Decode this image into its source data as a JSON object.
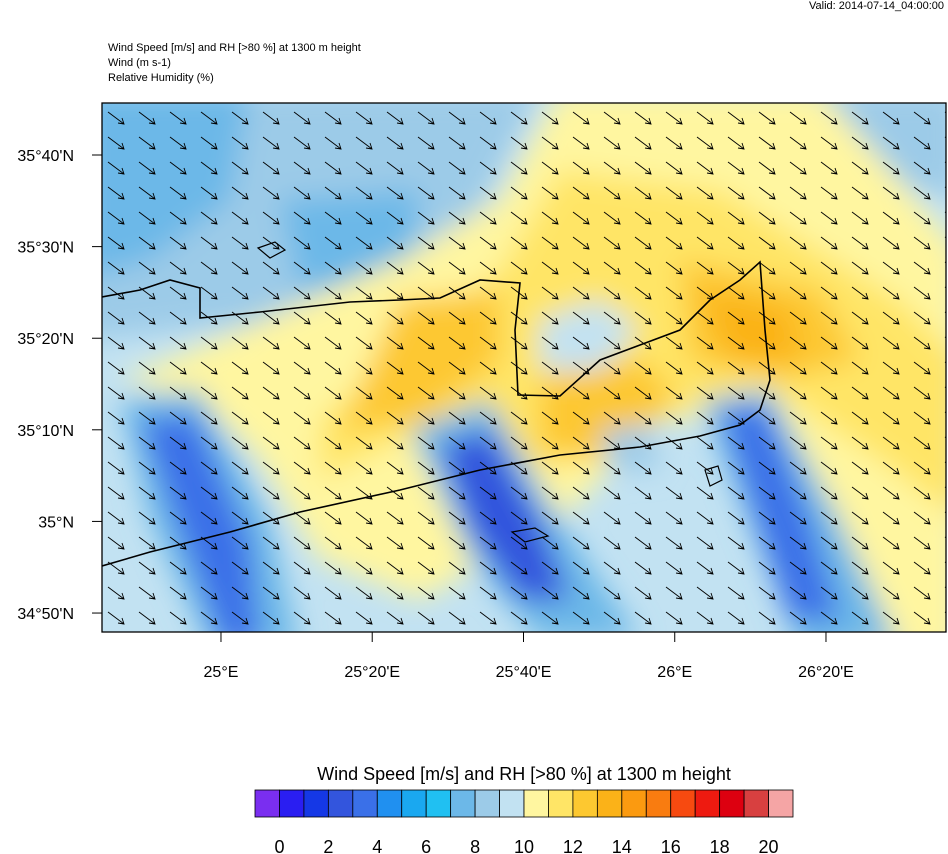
{
  "valid": "Valid: 2014-07-14_04:00:00",
  "header": [
    "Wind Speed [m/s] and RH [>80 %] at 1300 m height",
    "Wind   (m s-1)",
    "Relative Humidity   (%)"
  ],
  "map": {
    "latlim": [
      34.7988,
      35.7613
    ],
    "lonlim": [
      24.7378,
      26.5978
    ],
    "lat_ticks": [
      {
        "value": 35.6667,
        "label": "35°40'N"
      },
      {
        "value": 35.5,
        "label": "35°30'N"
      },
      {
        "value": 35.3333,
        "label": "35°20'N"
      },
      {
        "value": 35.1667,
        "label": "35°10'N"
      },
      {
        "value": 35,
        "label": "35°N"
      },
      {
        "value": 34.8333,
        "label": "34°50'N"
      }
    ],
    "lon_ticks": [
      {
        "value": 25,
        "label": "25°E"
      },
      {
        "value": 25.3333,
        "label": "25°20'E"
      },
      {
        "value": 25.6667,
        "label": "25°40'E"
      },
      {
        "value": 26,
        "label": "26°E"
      },
      {
        "value": 26.3333,
        "label": "26°20'E"
      }
    ]
  },
  "colorbar": {
    "title": "Wind Speed [m/s] and RH [>80 %] at 1300 m height",
    "lim": [
      -1,
      21
    ],
    "colors": [
      "#7a2ef0",
      "#2a1ef2",
      "#1538e6",
      "#3355dd",
      "#3a70e8",
      "#2090f0",
      "#1aa8f0",
      "#20c0f2",
      "#6cb8e8",
      "#9ccbe8",
      "#c2e2f2",
      "#fff6a0",
      "#ffe566",
      "#fdc830",
      "#fbb218",
      "#fb9a10",
      "#f97c10",
      "#f74a10",
      "#ee1a10",
      "#dd0010",
      "#d84040",
      "#f5a5a5"
    ],
    "ticks": [
      0,
      2,
      4,
      6,
      8,
      10,
      12,
      14,
      16,
      18,
      20
    ]
  }
}
